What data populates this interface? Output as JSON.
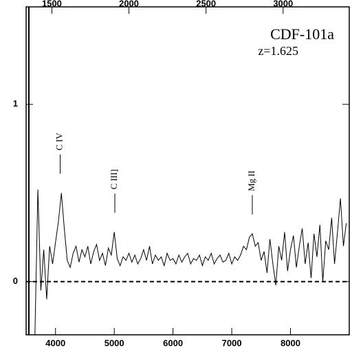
{
  "chart_data": {
    "type": "line",
    "title": "CDF-101a",
    "subtitle": "z=1.625",
    "color": "#000000",
    "x": [
      3650,
      3700,
      3750,
      3800,
      3850,
      3900,
      3950,
      4000,
      4050,
      4100,
      4150,
      4200,
      4250,
      4300,
      4350,
      4400,
      4450,
      4500,
      4550,
      4600,
      4650,
      4700,
      4750,
      4800,
      4850,
      4900,
      4950,
      5000,
      5050,
      5100,
      5150,
      5200,
      5250,
      5300,
      5350,
      5400,
      5450,
      5500,
      5550,
      5600,
      5650,
      5700,
      5750,
      5800,
      5850,
      5900,
      5950,
      6000,
      6050,
      6100,
      6150,
      6200,
      6250,
      6300,
      6350,
      6400,
      6450,
      6500,
      6550,
      6600,
      6650,
      6700,
      6750,
      6800,
      6850,
      6900,
      6950,
      7000,
      7050,
      7100,
      7150,
      7200,
      7250,
      7300,
      7350,
      7400,
      7450,
      7500,
      7550,
      7600,
      7650,
      7700,
      7750,
      7800,
      7850,
      7900,
      7950,
      8000,
      8050,
      8100,
      8150,
      8200,
      8250,
      8300,
      8350,
      8400,
      8450,
      8500,
      8550,
      8600,
      8650,
      8700,
      8750,
      8800,
      8850,
      8900,
      8950
    ],
    "values": [
      -0.3,
      0.52,
      -0.05,
      0.18,
      -0.1,
      0.2,
      0.1,
      0.22,
      0.34,
      0.5,
      0.3,
      0.12,
      0.08,
      0.16,
      0.2,
      0.11,
      0.18,
      0.14,
      0.2,
      0.1,
      0.17,
      0.21,
      0.12,
      0.16,
      0.09,
      0.19,
      0.15,
      0.28,
      0.13,
      0.09,
      0.14,
      0.12,
      0.16,
      0.11,
      0.15,
      0.1,
      0.13,
      0.18,
      0.12,
      0.2,
      0.1,
      0.15,
      0.12,
      0.14,
      0.09,
      0.16,
      0.12,
      0.13,
      0.1,
      0.15,
      0.11,
      0.14,
      0.16,
      0.1,
      0.13,
      0.12,
      0.15,
      0.09,
      0.14,
      0.12,
      0.16,
      0.1,
      0.13,
      0.15,
      0.11,
      0.12,
      0.16,
      0.1,
      0.14,
      0.12,
      0.15,
      0.2,
      0.18,
      0.25,
      0.27,
      0.2,
      0.22,
      0.12,
      0.17,
      0.05,
      0.24,
      0.1,
      -0.02,
      0.2,
      0.12,
      0.28,
      0.06,
      0.18,
      0.26,
      0.08,
      0.2,
      0.3,
      0.1,
      0.22,
      0.02,
      0.27,
      0.14,
      0.32,
      0.0,
      0.23,
      0.18,
      0.36,
      0.1,
      0.28,
      0.47,
      0.2,
      0.33
    ],
    "xlim": [
      3500,
      9000
    ],
    "xticks": [
      4000,
      5000,
      6000,
      7000,
      8000
    ],
    "ylim": [
      -0.3,
      1.55
    ],
    "yticks": [
      0,
      1
    ],
    "x2lim": [
      1333,
      3429
    ],
    "x2ticks": [
      1500,
      2000,
      2500,
      3000
    ],
    "hline": 0,
    "annotations": [
      {
        "text": "C IV",
        "x": 4080
      },
      {
        "text": "C III]",
        "x": 5010
      },
      {
        "text": "Mg II",
        "x": 7350
      }
    ]
  }
}
